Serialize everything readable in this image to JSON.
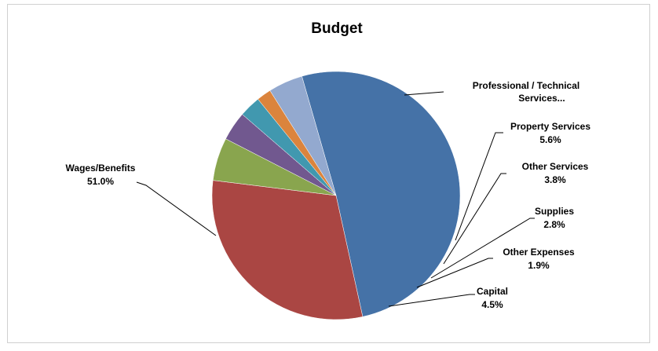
{
  "chart_data": {
    "type": "pie",
    "title": "Budget",
    "slices": [
      {
        "label": "Wages/Benefits",
        "value_label": "51.0%",
        "value": 51.0,
        "color": "#4572a7"
      },
      {
        "label": "Professional / Technical Services...",
        "value_label": "",
        "value": 30.4,
        "color": "#aa4643"
      },
      {
        "label": "Property Services",
        "value_label": "5.6%",
        "value": 5.6,
        "color": "#89a54e"
      },
      {
        "label": "Other Services",
        "value_label": "3.8%",
        "value": 3.8,
        "color": "#71588f"
      },
      {
        "label": "Supplies",
        "value_label": "2.8%",
        "value": 2.8,
        "color": "#4198af"
      },
      {
        "label": "Other Expenses",
        "value_label": "1.9%",
        "value": 1.9,
        "color": "#db843d"
      },
      {
        "label": "Capital",
        "value_label": "4.5%",
        "value": 4.5,
        "color": "#93a9cf"
      }
    ],
    "legend": "none"
  }
}
